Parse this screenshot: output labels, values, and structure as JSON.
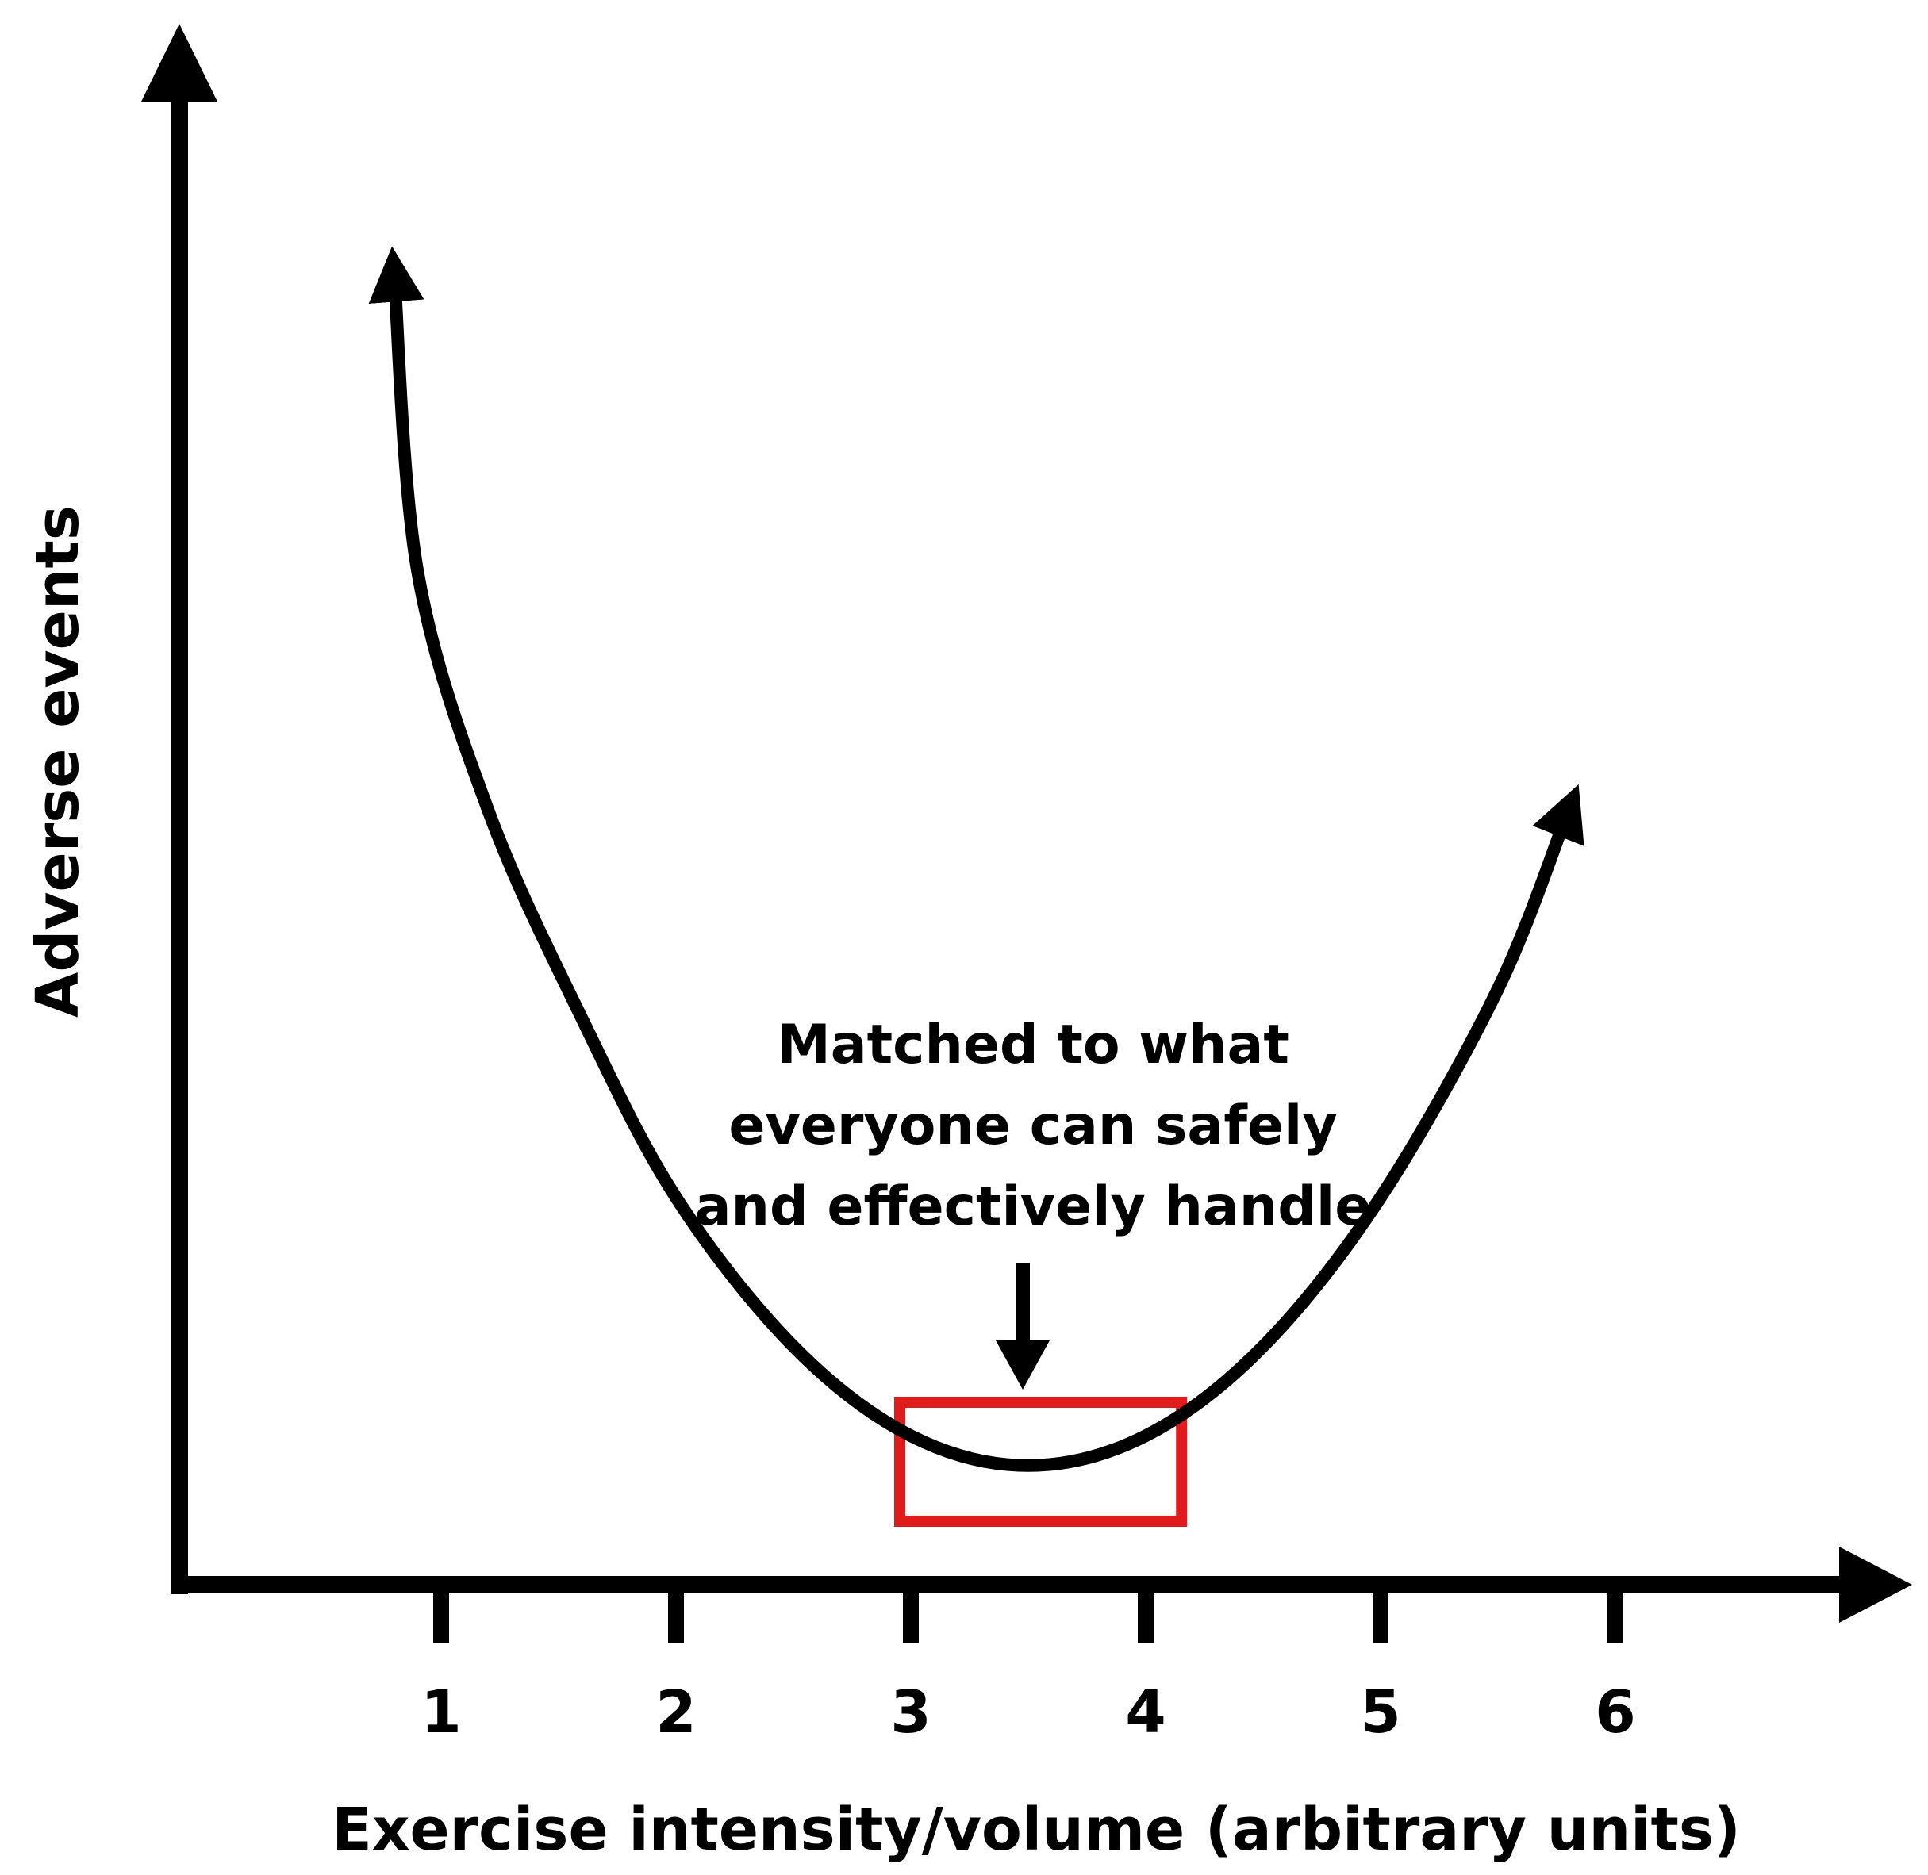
{
  "chart_data": {
    "type": "line",
    "title": "",
    "xlabel": "Exercise intensity/volume (arbitrary units)",
    "ylabel": "Adverse events",
    "x_ticks": [
      "1",
      "2",
      "3",
      "4",
      "5",
      "6"
    ],
    "xlim": [
      0,
      7.2
    ],
    "y_tick_labels": "none",
    "grid": false,
    "legend": "none",
    "series": [
      {
        "x": [
          0.8,
          0.9,
          1.2,
          1.6,
          2.0,
          2.5,
          3.0,
          3.5,
          4.0,
          4.5,
          5.0,
          5.5,
          5.8
        ],
        "y": [
          0.88,
          0.68,
          0.52,
          0.38,
          0.26,
          0.16,
          0.1,
          0.08,
          0.1,
          0.16,
          0.26,
          0.4,
          0.52
        ],
        "arrowheads": "both-ends"
      }
    ],
    "highlight_box": {
      "x": [
        3.0,
        4.2
      ],
      "color": "#e01b1b"
    },
    "annotation": {
      "lines": [
        "Matched to what",
        "everyone can safely",
        "and effectively handle"
      ],
      "points_to_x": 3.5
    }
  }
}
